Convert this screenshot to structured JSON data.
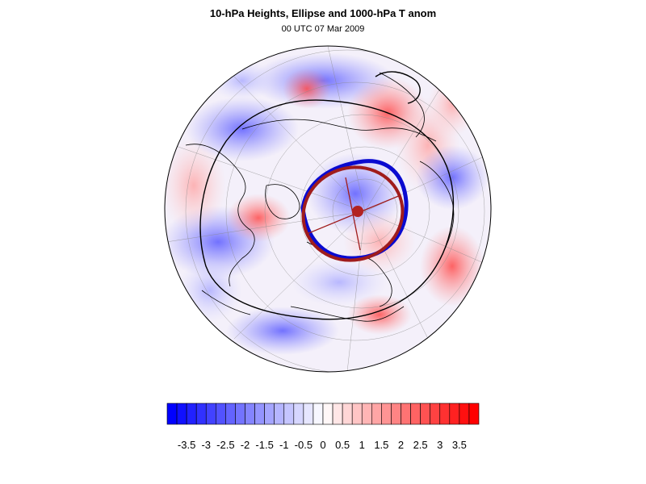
{
  "header": {
    "title": "10-hPa Heights, Ellipse and 1000-hPa T anom",
    "subtitle": "00 UTC 07 Mar 2009"
  },
  "colors": {
    "negative": "#0000ff",
    "positive": "#ff0000",
    "neutral": "#ffffff",
    "ellipse_fit": "#a01c1c",
    "ellipse_vortex": "#0a0ad0",
    "height_contour": "#000000"
  },
  "colorbar": {
    "tick_labels": [
      "-3.5",
      "-3",
      "-2.5",
      "-2",
      "-1.5",
      "-1",
      "-0.5",
      "0",
      "0.5",
      "1",
      "1.5",
      "2",
      "2.5",
      "3",
      "3.5"
    ],
    "min": -4,
    "max": 4,
    "step": 0.25
  }
}
